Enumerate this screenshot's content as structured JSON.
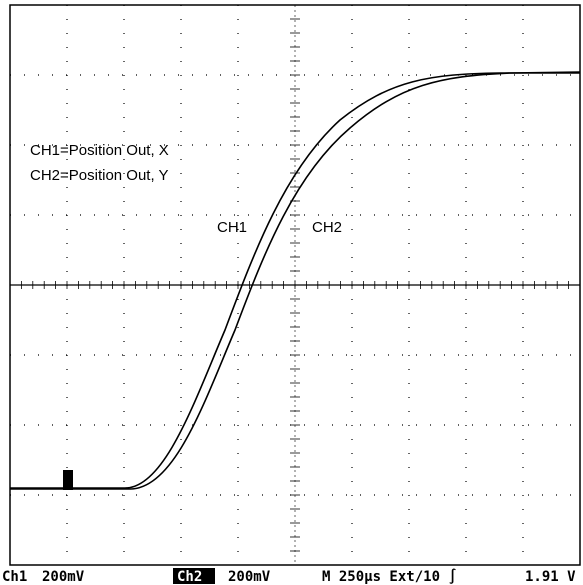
{
  "annotations": {
    "legend_ch1": "CH1=Position Out, X",
    "legend_ch2": "CH2=Position Out, Y",
    "trace_ch1": "CH1",
    "trace_ch2": "CH2"
  },
  "status_bar": {
    "ch1": "Ch1",
    "ch1_scale": "200mV",
    "ch2": "Ch2",
    "ch2_scale": "200mV",
    "timebase": "M 250µs Ext/10 ∫",
    "trigger_level": "1.91 V"
  }
}
